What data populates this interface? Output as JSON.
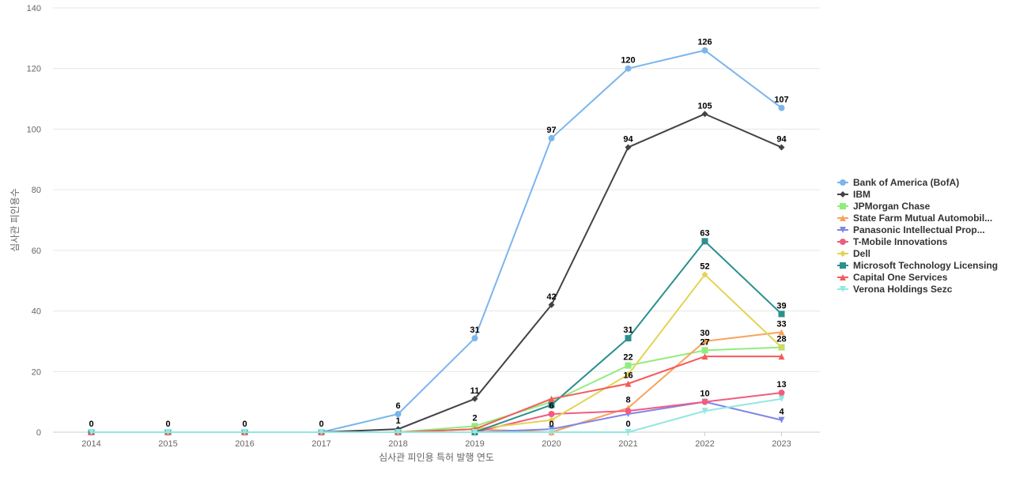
{
  "chart_data": {
    "type": "line",
    "title": "",
    "xlabel": "심사관 피인용 특허 발행 연도",
    "ylabel": "심사관 피인용수",
    "x": [
      "2014",
      "2015",
      "2016",
      "2017",
      "2018",
      "2019",
      "2020",
      "2021",
      "2022",
      "2023"
    ],
    "ylim": [
      0,
      140
    ],
    "yticks": [
      0,
      20,
      40,
      60,
      80,
      100,
      120,
      140
    ],
    "grid": true,
    "legend_position": "right",
    "series": [
      {
        "name": "Bank of America (BofA)",
        "color": "#7cb5ec",
        "marker": "circle",
        "values": [
          0,
          0,
          0,
          0,
          6,
          31,
          97,
          120,
          126,
          107
        ],
        "labeled": [
          true,
          true,
          true,
          true,
          true,
          true,
          true,
          true,
          true,
          true
        ]
      },
      {
        "name": "IBM",
        "color": "#434348",
        "marker": "diamond",
        "values": [
          0,
          0,
          0,
          0,
          1,
          11,
          42,
          94,
          105,
          94
        ],
        "labeled": [
          false,
          false,
          false,
          false,
          true,
          true,
          true,
          true,
          true,
          true
        ]
      },
      {
        "name": "JPMorgan Chase",
        "color": "#90ed7d",
        "marker": "square",
        "values": [
          0,
          0,
          0,
          0,
          0,
          2,
          10,
          22,
          27,
          28
        ],
        "labeled": [
          false,
          false,
          false,
          false,
          false,
          true,
          false,
          true,
          true,
          true
        ]
      },
      {
        "name": "State Farm Mutual Automobil...",
        "color": "#f7a35c",
        "marker": "triangle",
        "values": [
          0,
          0,
          0,
          0,
          0,
          1,
          0,
          8,
          30,
          33
        ],
        "labeled": [
          false,
          false,
          false,
          false,
          false,
          false,
          false,
          true,
          true,
          true
        ]
      },
      {
        "name": "Panasonic Intellectual Prop...",
        "color": "#8085e9",
        "marker": "triangle-down",
        "values": [
          0,
          0,
          0,
          0,
          0,
          0,
          1,
          6,
          10,
          4
        ],
        "labeled": [
          false,
          false,
          false,
          false,
          false,
          false,
          false,
          false,
          false,
          true
        ]
      },
      {
        "name": "T-Mobile Innovations",
        "color": "#f15c80",
        "marker": "circle",
        "values": [
          0,
          0,
          0,
          0,
          0,
          0,
          6,
          7,
          10,
          13
        ],
        "labeled": [
          false,
          false,
          false,
          false,
          false,
          false,
          true,
          false,
          true,
          true
        ]
      },
      {
        "name": "Dell",
        "color": "#e4d354",
        "marker": "diamond",
        "values": [
          0,
          0,
          0,
          0,
          0,
          1,
          4,
          19,
          52,
          28
        ],
        "labeled": [
          false,
          false,
          false,
          false,
          false,
          false,
          false,
          false,
          true,
          false
        ]
      },
      {
        "name": "Microsoft Technology Licensing",
        "color": "#2b908f",
        "marker": "square",
        "values": [
          0,
          0,
          0,
          0,
          0,
          0,
          9,
          31,
          63,
          39
        ],
        "labeled": [
          false,
          false,
          false,
          false,
          false,
          false,
          false,
          true,
          true,
          true
        ]
      },
      {
        "name": "Capital One Services",
        "color": "#f45b5b",
        "marker": "triangle",
        "values": [
          0,
          0,
          0,
          0,
          0,
          1,
          11,
          16,
          25,
          25
        ],
        "labeled": [
          false,
          false,
          false,
          false,
          false,
          false,
          false,
          true,
          false,
          false
        ]
      },
      {
        "name": "Verona Holdings Sezc",
        "color": "#91e8e1",
        "marker": "triangle-down",
        "values": [
          0,
          0,
          0,
          0,
          0,
          0,
          0,
          0,
          7,
          11
        ],
        "labeled": [
          false,
          false,
          false,
          false,
          false,
          false,
          true,
          true,
          false,
          false
        ]
      }
    ]
  }
}
